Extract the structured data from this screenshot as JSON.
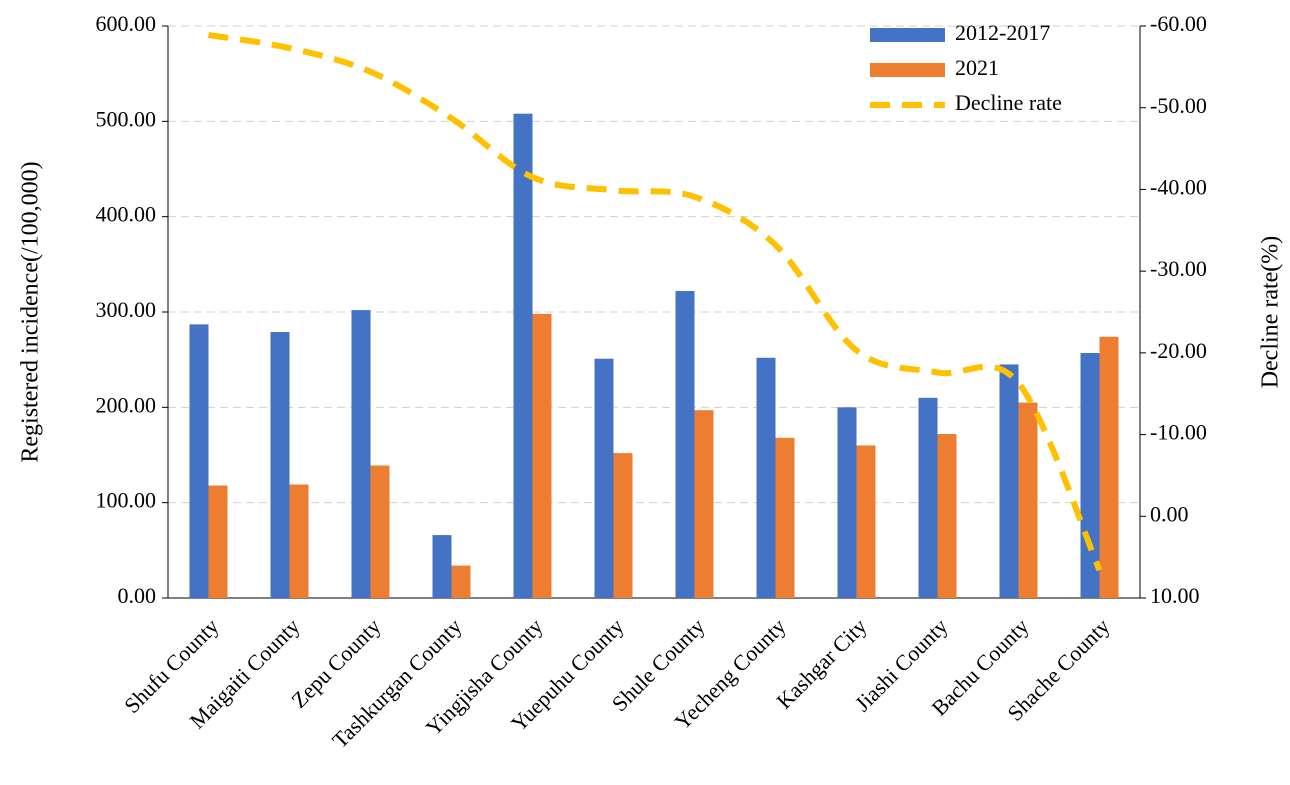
{
  "chart_data": {
    "type": "bar",
    "y_label": "Registered incidence(/100,000)",
    "y2_label": "Decline rate(%)",
    "categories": [
      "Shufu County",
      "Maigaiti County",
      "Zepu County",
      "Tashkurgan County",
      "Yingjisha County",
      "Yuepuhu County",
      "Shule County",
      "Yecheng County",
      "Kashgar City",
      "Jiashi County",
      "Bachu County",
      "Shache County"
    ],
    "series": [
      {
        "name": "2012-2017",
        "color": "#4472c4",
        "values": [
          287,
          279,
          302,
          66,
          508,
          251,
          322,
          252,
          200,
          210,
          245,
          257
        ]
      },
      {
        "name": "2021",
        "color": "#ed7d31",
        "values": [
          118,
          119,
          139,
          34,
          298,
          152,
          197,
          168,
          160,
          172,
          205,
          274
        ]
      },
      {
        "name": "Decline rate",
        "type": "line",
        "axis": "y2",
        "line_style": "dashed",
        "color": "#ffc000",
        "values": [
          -58.9,
          -57.3,
          -54.4,
          -48.7,
          -41.5,
          -39.9,
          -39.1,
          -33.2,
          -20.3,
          -17.6,
          -16.3,
          6.6
        ]
      }
    ],
    "ylim": [
      0,
      600
    ],
    "yticks": [
      {
        "value": 0,
        "label": "0.00"
      },
      {
        "value": 100,
        "label": "100.00"
      },
      {
        "value": 200,
        "label": "200.00"
      },
      {
        "value": 300,
        "label": "300.00"
      },
      {
        "value": 400,
        "label": "400.00"
      },
      {
        "value": 500,
        "label": "500.00"
      },
      {
        "value": 600,
        "label": "600.00"
      }
    ],
    "y2lim": [
      10,
      -60
    ],
    "y2ticks": [
      {
        "value": 10,
        "label": "10.00"
      },
      {
        "value": 0,
        "label": "0.00"
      },
      {
        "value": -10,
        "label": "-10.00"
      },
      {
        "value": -20,
        "label": "-20.00"
      },
      {
        "value": -30,
        "label": "-30.00"
      },
      {
        "value": -40,
        "label": "-40.00"
      },
      {
        "value": -50,
        "label": "-50.00"
      },
      {
        "value": -60,
        "label": "-60.00"
      }
    ],
    "grid": true,
    "legend": "upper right"
  }
}
